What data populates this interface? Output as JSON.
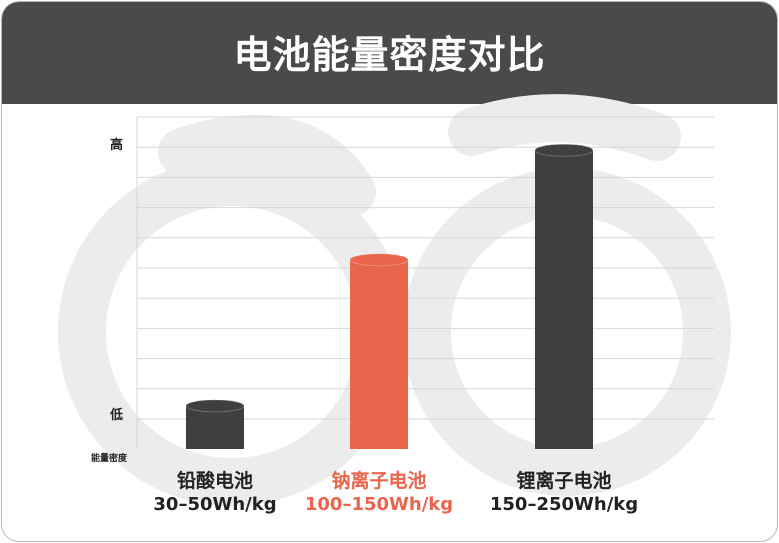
{
  "colors": {
    "header_bg": "#4a4a4a",
    "header_text": "#ffffff",
    "bar_dark": "#3f3f3f",
    "bar_highlight": "#e9654b",
    "label_dark": "#222222",
    "label_highlight": "#e9654b",
    "grid": "#d6d6d6",
    "watermark": "#ececec"
  },
  "chart_data": {
    "type": "bar",
    "title": "电池能量密度对比",
    "ylabel": "能量密度",
    "y_tick_labels": [
      "低",
      "高"
    ],
    "grid": true,
    "legend": "none",
    "ylim": [
      0,
      100
    ],
    "categories": [
      "铅酸电池",
      "钠离子电池",
      "锂离子电池"
    ],
    "ranges": [
      "30–50Wh/kg",
      "100–150Wh/kg",
      "150–250Wh/kg"
    ],
    "values": [
      13,
      57,
      90
    ],
    "highlight_index": 1
  }
}
